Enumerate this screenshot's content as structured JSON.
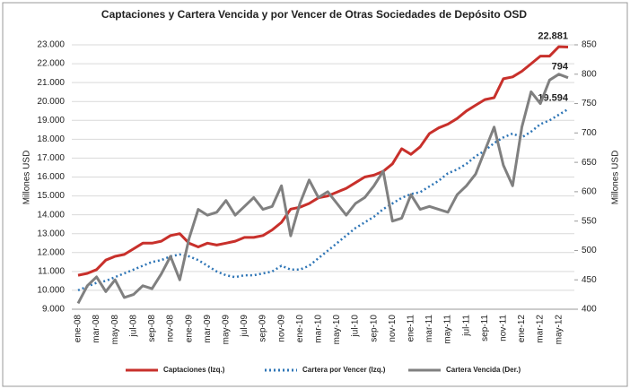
{
  "chart_data": {
    "type": "line",
    "title": "Captaciones y Cartera Vencida y por Vencer de Otras Sociedades de Depósito OSD",
    "y_label": "Millones USD",
    "y2_label": "Millones USD",
    "categories": [
      "ene-08",
      null,
      "mar-08",
      null,
      "may-08",
      null,
      "jul-08",
      null,
      "sep-08",
      null,
      "nov-08",
      null,
      "ene-09",
      null,
      "mar-09",
      null,
      "may-09",
      null,
      "jul-09",
      null,
      "sep-09",
      null,
      "nov-09",
      null,
      "ene-10",
      null,
      "mar-10",
      null,
      "may-10",
      null,
      "jul-10",
      null,
      "sep-10",
      null,
      "nov-10",
      null,
      "ene-11",
      null,
      "mar-11",
      null,
      "may-11",
      null,
      "jul-11",
      null,
      "sep-11",
      null,
      "nov-11",
      null,
      "ene-12",
      null,
      "mar-12",
      null,
      "may-12",
      null
    ],
    "series": [
      {
        "name": "Captaciones (Izq.)",
        "color": "#c8302b",
        "dash": false,
        "values": [
          10800,
          10900,
          11100,
          11600,
          11800,
          11900,
          12200,
          12500,
          12500,
          12600,
          12900,
          13000,
          12500,
          12300,
          12500,
          12400,
          12500,
          12600,
          12800,
          12800,
          12900,
          13200,
          13600,
          14300,
          14400,
          14600,
          14900,
          15000,
          15200,
          15400,
          15700,
          16000,
          16100,
          16300,
          16700,
          17500,
          17200,
          17600,
          18300,
          18600,
          18800,
          19100,
          19500,
          19800,
          20100,
          20200,
          21200,
          21300,
          21600,
          22000,
          22400,
          22400,
          22900,
          22881
        ],
        "value_labels": [
          null,
          null,
          null,
          null,
          null,
          null,
          null,
          null,
          null,
          null,
          null,
          null,
          null,
          null,
          null,
          null,
          null,
          null,
          null,
          null,
          null,
          null,
          null,
          null,
          null,
          null,
          null,
          null,
          null,
          null,
          null,
          null,
          null,
          null,
          null,
          null,
          null,
          null,
          null,
          null,
          null,
          null,
          null,
          null,
          null,
          null,
          null,
          null,
          null,
          null,
          null,
          null,
          null,
          "22.881"
        ]
      },
      {
        "name": "Cartera por Vencer (Izq.)",
        "color": "#2e75b6",
        "dash": true,
        "values": [
          10000,
          10200,
          10400,
          10500,
          10700,
          10900,
          11100,
          11300,
          11500,
          11600,
          11800,
          11900,
          11800,
          11600,
          11300,
          11000,
          10800,
          10700,
          10800,
          10800,
          10900,
          11000,
          11300,
          11100,
          11100,
          11300,
          11700,
          12100,
          12500,
          12900,
          13300,
          13600,
          13900,
          14300,
          14600,
          14900,
          15100,
          15200,
          15500,
          15800,
          16200,
          16400,
          16700,
          17100,
          17400,
          17800,
          18100,
          18300,
          18100,
          18400,
          18800,
          19000,
          19300,
          19594
        ],
        "value_labels": [
          null,
          null,
          null,
          null,
          null,
          null,
          null,
          null,
          null,
          null,
          null,
          null,
          null,
          null,
          null,
          null,
          null,
          null,
          null,
          null,
          null,
          null,
          null,
          null,
          null,
          null,
          null,
          null,
          null,
          null,
          null,
          null,
          null,
          null,
          null,
          null,
          null,
          null,
          null,
          null,
          null,
          null,
          null,
          null,
          null,
          null,
          null,
          null,
          null,
          null,
          null,
          null,
          null,
          "19.594"
        ]
      },
      {
        "name": "Cartera Vencida (Der.)",
        "color": "#808080",
        "dash": false,
        "axis": "y2",
        "values": [
          410,
          440,
          455,
          430,
          450,
          420,
          425,
          440,
          435,
          460,
          490,
          450,
          520,
          570,
          560,
          565,
          585,
          560,
          575,
          590,
          570,
          575,
          610,
          525,
          580,
          620,
          590,
          600,
          580,
          560,
          580,
          590,
          610,
          635,
          550,
          555,
          595,
          570,
          575,
          570,
          565,
          595,
          610,
          630,
          670,
          710,
          645,
          610,
          710,
          770,
          750,
          790,
          800,
          794
        ],
        "show_last_label": true
      }
    ],
    "ylim": [
      9000,
      23000
    ],
    "yticks": [
      {
        "value": 9000,
        "label": "9.000"
      },
      {
        "value": 10000,
        "label": "10.000"
      },
      {
        "value": 11000,
        "label": "11.000"
      },
      {
        "value": 12000,
        "label": "12.000"
      },
      {
        "value": 13000,
        "label": "13.000"
      },
      {
        "value": 14000,
        "label": "14.000"
      },
      {
        "value": 15000,
        "label": "15.000"
      },
      {
        "value": 16000,
        "label": "16.000"
      },
      {
        "value": 17000,
        "label": "17.000"
      },
      {
        "value": 18000,
        "label": "18.000"
      },
      {
        "value": 19000,
        "label": "19.000"
      },
      {
        "value": 20000,
        "label": "20.000"
      },
      {
        "value": 21000,
        "label": "21.000"
      },
      {
        "value": 22000,
        "label": "22.000"
      },
      {
        "value": 23000,
        "label": "23.000"
      }
    ],
    "y2lim": [
      400,
      850
    ],
    "y2ticks": [
      400,
      450,
      500,
      550,
      600,
      650,
      700,
      750,
      800,
      850
    ],
    "grid": true
  }
}
